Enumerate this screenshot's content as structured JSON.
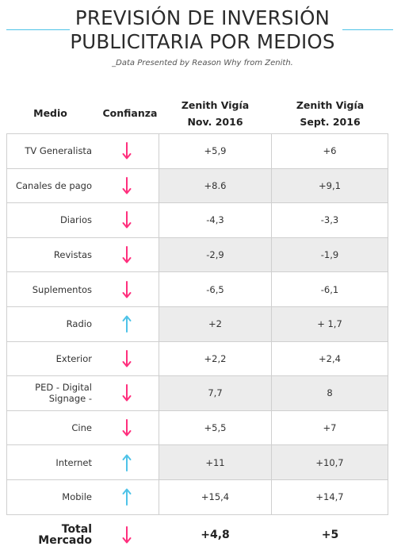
{
  "title_line1": "PREVISIÓN DE INVERSIÓN",
  "title_line2": "PUBLICITARIA POR MEDIOS",
  "subtitle": "_Data Presented by Reason Why from Zenith.",
  "headers": {
    "medio": "Medio",
    "confianza": "Confianza",
    "col3_line1": "Zenith Vigía",
    "col3_line2": "Nov. 2016",
    "col4_line1": "Zenith Vigía",
    "col4_line2": "Sept. 2016"
  },
  "colors": {
    "down": "#ff2f7d",
    "up": "#4fc3e8",
    "accent": "#4fc3e8"
  },
  "chart_data": {
    "type": "table",
    "columns": [
      "Medio",
      "Confianza",
      "Zenith Vigía Nov. 2016",
      "Zenith Vigía Sept. 2016"
    ],
    "rows": [
      {
        "medio": "TV Generalista",
        "confianza": "down",
        "nov": "+5,9",
        "sept": "+6"
      },
      {
        "medio": "Canales de pago",
        "confianza": "down",
        "nov": "+8.6",
        "sept": "+9,1"
      },
      {
        "medio": "Diarios",
        "confianza": "down",
        "nov": "-4,3",
        "sept": "-3,3"
      },
      {
        "medio": "Revistas",
        "confianza": "down",
        "nov": "-2,9",
        "sept": "-1,9"
      },
      {
        "medio": "Suplementos",
        "confianza": "down",
        "nov": "-6,5",
        "sept": "-6,1"
      },
      {
        "medio": "Radio",
        "confianza": "up",
        "nov": "+2",
        "sept": "+ 1,7"
      },
      {
        "medio": "Exterior",
        "confianza": "down",
        "nov": "+2,2",
        "sept": "+2,4"
      },
      {
        "medio": "PED - Digital Signage -",
        "confianza": "down",
        "nov": "7,7",
        "sept": "8"
      },
      {
        "medio": "Cine",
        "confianza": "down",
        "nov": "+5,5",
        "sept": "+7"
      },
      {
        "medio": "Internet",
        "confianza": "up",
        "nov": "+11",
        "sept": "+10,7"
      },
      {
        "medio": "Mobile",
        "confianza": "up",
        "nov": "+15,4",
        "sept": "+14,7"
      }
    ],
    "total": {
      "medio": "Total Mercado",
      "confianza": "down",
      "nov": "+4,8",
      "sept": "+5"
    }
  }
}
